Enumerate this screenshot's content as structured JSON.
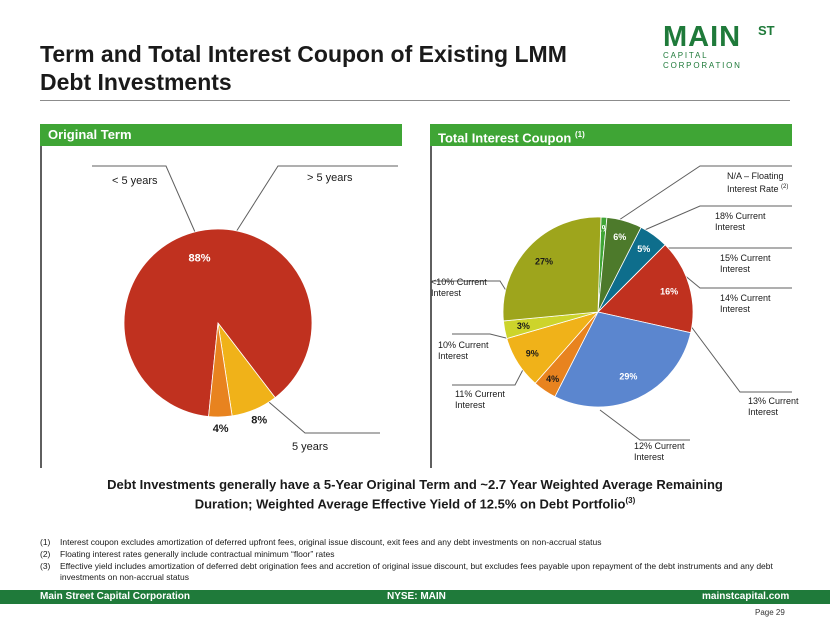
{
  "title": "Term and Total Interest Coupon of Existing LMM Debt Investments",
  "logo": {
    "main": "MAIN",
    "st": "ST",
    "sub": "CAPITAL CORPORATION"
  },
  "left_section": {
    "header": "Original Term",
    "labels": {
      "under5": "< 5 years",
      "over5": "> 5 years",
      "five": "5 years"
    }
  },
  "right_section": {
    "header": "Total Interest Coupon",
    "header_sup": "(1)",
    "labels": {
      "floating": "N/A – Floating Interest Rate",
      "floating_sup": "(2)",
      "r18": "18% Current Interest",
      "r15": "15% Current Interest",
      "r14": "14% Current Interest",
      "r13": "13% Current Interest",
      "r12": "12% Current Interest",
      "r11": "11% Current Interest",
      "r10": "10% Current Interest",
      "lt10": "<10% Current Interest"
    }
  },
  "chart_data": [
    {
      "type": "pie",
      "title": "Original Term",
      "slices": [
        {
          "label": "5 years",
          "value": 88,
          "color": "#c0311f"
        },
        {
          "label": "< 5 years",
          "value": 8,
          "color": "#f0b219"
        },
        {
          "label": "> 5 years",
          "value": 4,
          "color": "#e8831f"
        }
      ]
    },
    {
      "type": "pie",
      "title": "Total Interest Coupon",
      "slices": [
        {
          "label": "N/A – Floating Interest Rate",
          "value": 1,
          "color": "#3fa535"
        },
        {
          "label": "18% Current Interest",
          "value": 6,
          "color": "#4d7a2b"
        },
        {
          "label": "15% Current Interest",
          "value": 5,
          "color": "#0e6e8c"
        },
        {
          "label": "14% Current Interest",
          "value": 16,
          "color": "#c0311f"
        },
        {
          "label": "13% Current Interest",
          "value": 29,
          "color": "#5b86cf"
        },
        {
          "label": "12% Current Interest",
          "value": 4,
          "color": "#e8831f"
        },
        {
          "label": "11% Current Interest",
          "value": 9,
          "color": "#f0b219"
        },
        {
          "label": "10% Current Interest",
          "value": 3,
          "color": "#cdd42b"
        },
        {
          "label": "<10% Current Interest",
          "value": 27,
          "color": "#9ea51c"
        }
      ]
    }
  ],
  "summary": {
    "line1": "Debt Investments generally have a 5-Year Original Term and ~2.7 Year Weighted Average Remaining",
    "line2": "Duration;   Weighted Average Effective Yield of 12.5% on Debt Portfolio",
    "sup": "(3)"
  },
  "footnotes": [
    {
      "num": "(1)",
      "text": "Interest coupon excludes amortization of deferred upfront fees, original issue discount, exit fees and any debt investments on non-accrual status"
    },
    {
      "num": "(2)",
      "text": "Floating interest rates generally include contractual minimum “floor” rates"
    },
    {
      "num": "(3)",
      "text": "Effective yield includes amortization of deferred debt origination fees and accretion of original issue discount, but excludes fees payable upon repayment of the debt instruments and any debt investments on non-accrual status"
    }
  ],
  "footer": {
    "left": "Main Street Capital Corporation",
    "center": "NYSE: MAIN",
    "right": "mainstcapital.com"
  },
  "page": {
    "label": "Page",
    "number": "29"
  }
}
